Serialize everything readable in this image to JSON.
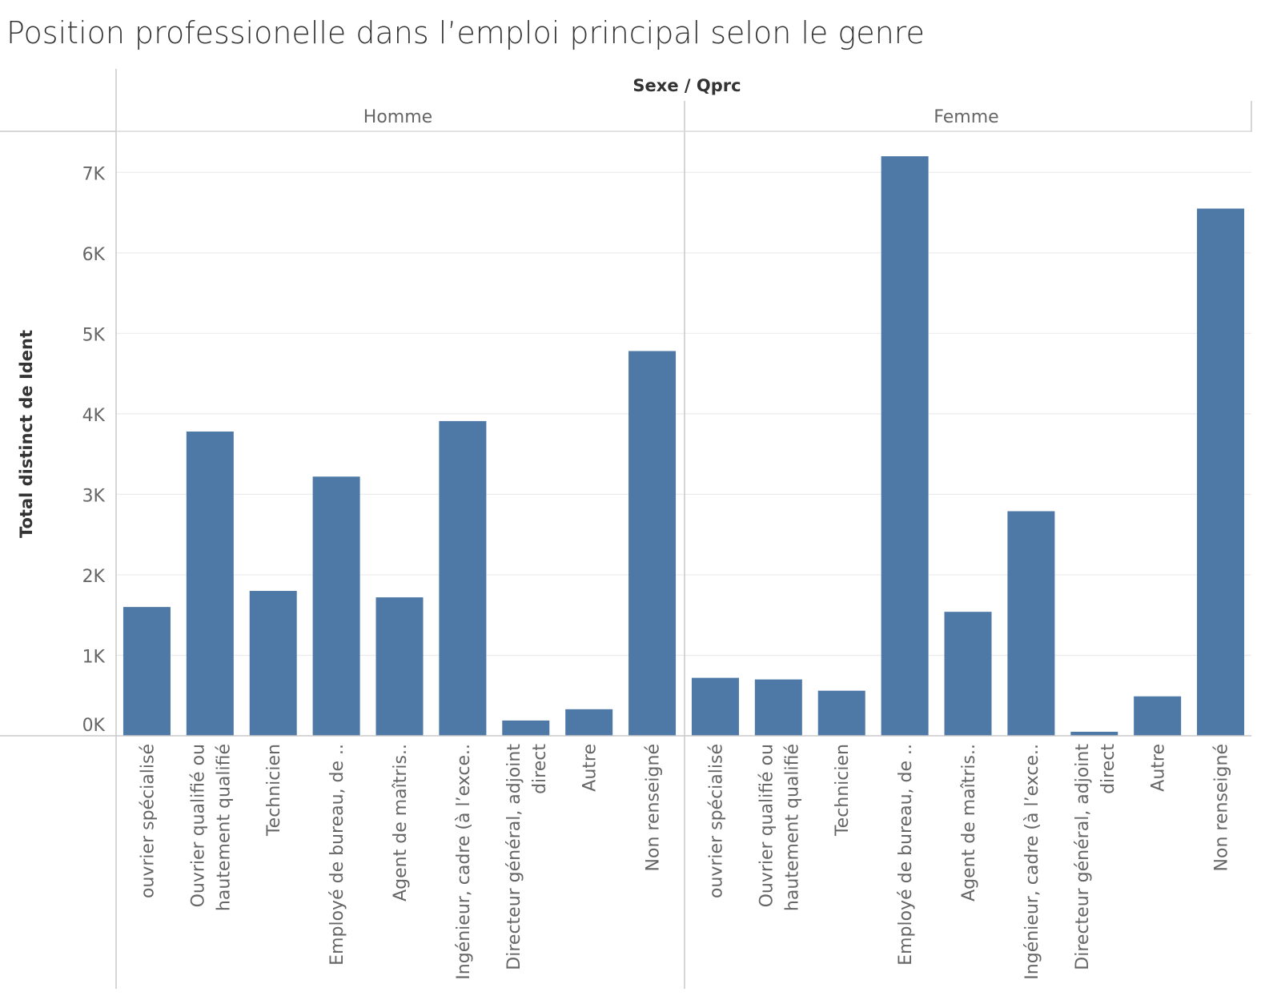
{
  "chart_data": {
    "type": "bar",
    "title": "Position professionelle dans l’emploi principal selon le genre",
    "xlabel": "Sexe / Qprc",
    "ylabel": "Total distinct de Ident",
    "ylim": [
      0,
      7500
    ],
    "yticks": [
      0,
      1000,
      2000,
      3000,
      4000,
      5000,
      6000,
      7000
    ],
    "ytick_labels": [
      "0K",
      "1K",
      "2K",
      "3K",
      "4K",
      "5K",
      "6K",
      "7K"
    ],
    "grid": true,
    "bar_color": "#4e79a7",
    "categories": [
      [
        "ouvrier spécialisé"
      ],
      [
        "Ouvrier qualifié ou",
        "hautement qualifié"
      ],
      [
        "Technicien"
      ],
      [
        "Employé de bureau, de .."
      ],
      [
        "Agent de maîtris.."
      ],
      [
        "Ingénieur, cadre (à l’exce.."
      ],
      [
        "Directeur général, adjoint",
        "direct"
      ],
      [
        "Autre"
      ],
      [
        "Non renseigné"
      ]
    ],
    "panels": [
      {
        "name": "Homme",
        "values": [
          1600,
          3780,
          1800,
          3220,
          1720,
          3910,
          190,
          330,
          4780
        ]
      },
      {
        "name": "Femme",
        "values": [
          720,
          700,
          560,
          7200,
          1540,
          2790,
          50,
          490,
          6550
        ]
      }
    ]
  }
}
